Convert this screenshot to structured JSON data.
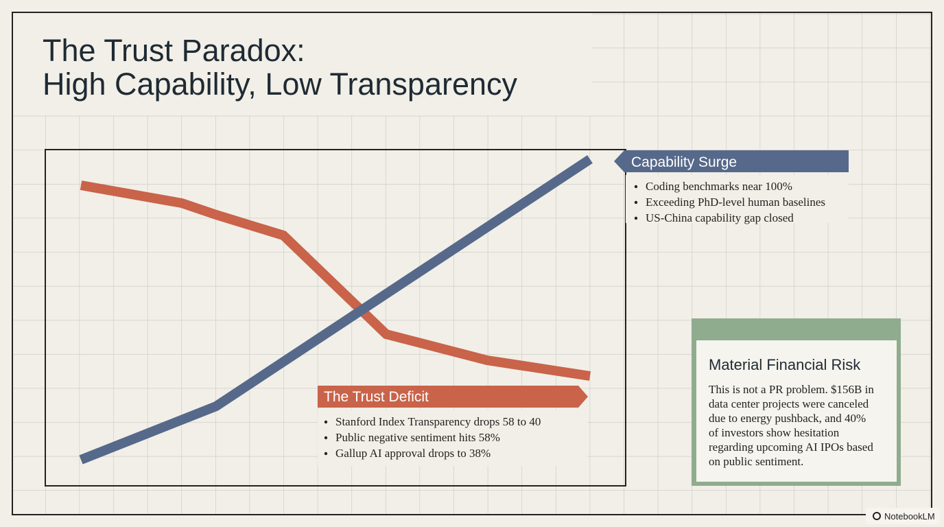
{
  "title": {
    "lines": [
      "The Trust Paradox:",
      "High Capability, Low Transparency"
    ]
  },
  "capability": {
    "label": "Capability Surge",
    "bullets": [
      "Coding benchmarks near 100%",
      "Exceeding PhD-level human baselines",
      "US-China capability gap closed"
    ]
  },
  "trust": {
    "label": "The Trust Deficit",
    "bullets": [
      "Stanford Index Transparency drops 58 to 40",
      "Public negative sentiment hits 58%",
      "Gallup AI approval drops to 38%"
    ]
  },
  "risk": {
    "title": "Material Financial Risk",
    "lines": [
      "This is not a PR problem. $156B in",
      "data center projects were canceled",
      "due to energy pushback, and 40%",
      "of investors show hesitation",
      "regarding upcoming AI IPOs based",
      "on public sentiment."
    ]
  },
  "badge": "NotebookLM"
}
